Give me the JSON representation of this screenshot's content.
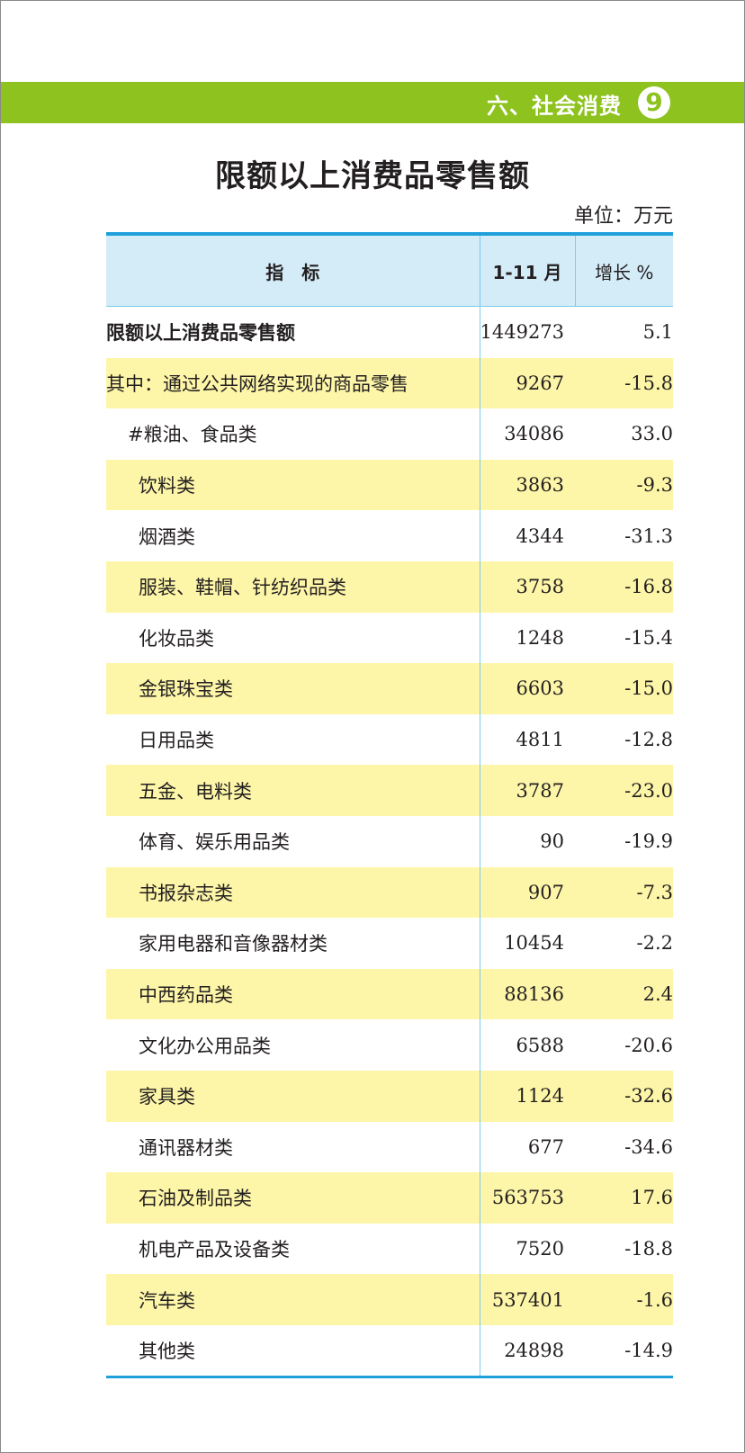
{
  "section": {
    "title": "六、社会消费",
    "page_number": "9"
  },
  "title": "限额以上消费品零售额",
  "unit": "单位：万元",
  "colors": {
    "band": "#8dc21f",
    "header_bg": "#d4ecf8",
    "row_highlight": "#fdf6a8",
    "rule": "#1fa0dc"
  },
  "table": {
    "headers": [
      "指　标",
      "1-11 月",
      "增长 %"
    ],
    "rows": [
      {
        "label": "限额以上消费品零售额",
        "value": "1449273",
        "growth": "5.1"
      },
      {
        "label": "其中：通过公共网络实现的商品零售",
        "value": "9267",
        "growth": "-15.8"
      },
      {
        "label": "#粮油、食品类",
        "value": "34086",
        "growth": "33.0"
      },
      {
        "label": "饮料类",
        "value": "3863",
        "growth": "-9.3"
      },
      {
        "label": "烟酒类",
        "value": "4344",
        "growth": "-31.3"
      },
      {
        "label": "服装、鞋帽、针纺织品类",
        "value": "3758",
        "growth": "-16.8"
      },
      {
        "label": "化妆品类",
        "value": "1248",
        "growth": "-15.4"
      },
      {
        "label": "金银珠宝类",
        "value": "6603",
        "growth": "-15.0"
      },
      {
        "label": "日用品类",
        "value": "4811",
        "growth": "-12.8"
      },
      {
        "label": "五金、电料类",
        "value": "3787",
        "growth": "-23.0"
      },
      {
        "label": "体育、娱乐用品类",
        "value": "90",
        "growth": "-19.9"
      },
      {
        "label": "书报杂志类",
        "value": "907",
        "growth": "-7.3"
      },
      {
        "label": "家用电器和音像器材类",
        "value": "10454",
        "growth": "-2.2"
      },
      {
        "label": "中西药品类",
        "value": "88136",
        "growth": "2.4"
      },
      {
        "label": "文化办公用品类",
        "value": "6588",
        "growth": "-20.6"
      },
      {
        "label": "家具类",
        "value": "1124",
        "growth": "-32.6"
      },
      {
        "label": "通讯器材类",
        "value": "677",
        "growth": "-34.6"
      },
      {
        "label": "石油及制品类",
        "value": "563753",
        "growth": "17.6"
      },
      {
        "label": "机电产品及设备类",
        "value": "7520",
        "growth": "-18.8"
      },
      {
        "label": "汽车类",
        "value": "537401",
        "growth": "-1.6"
      },
      {
        "label": "其他类",
        "value": "24898",
        "growth": "-14.9"
      }
    ]
  }
}
